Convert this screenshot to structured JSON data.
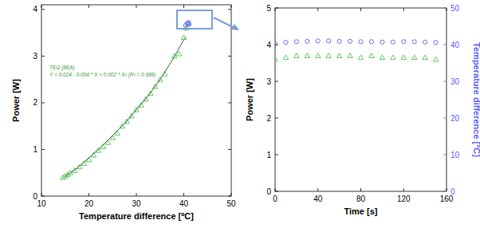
{
  "chart_data": [
    {
      "type": "scatter",
      "x_label": "Temperature difference [ºC]",
      "y_label": "Power [W]",
      "xlim": [
        10,
        50
      ],
      "xticks": [
        10,
        20,
        30,
        40,
        50
      ],
      "ylim": [
        0,
        4.1
      ],
      "yticks": [
        0,
        1,
        2,
        3,
        4
      ],
      "series": [
        {
          "name": "TEG (8EA)",
          "type": "scatter",
          "marker": "triangle",
          "color": "#4cc44c",
          "x": [
            14.5,
            15,
            15.5,
            16,
            17,
            18,
            19,
            20,
            21,
            22,
            23,
            24,
            25,
            26,
            27,
            28,
            29,
            30,
            31,
            32,
            33,
            34,
            35,
            36,
            38,
            39,
            40,
            40.5,
            41
          ],
          "values": [
            0.4,
            0.43,
            0.46,
            0.5,
            0.55,
            0.63,
            0.7,
            0.78,
            0.88,
            0.98,
            1.06,
            1.15,
            1.25,
            1.35,
            1.5,
            1.6,
            1.72,
            1.85,
            1.95,
            2.08,
            2.2,
            2.35,
            2.5,
            2.62,
            3.0,
            3.05,
            3.4,
            3.6,
            3.7
          ]
        },
        {
          "name": "Y = 0.024 - 0.004 * X + 0.002 * X² (R² = 0.999)",
          "type": "line",
          "line_style": "solid",
          "color": "#336633",
          "x": [
            15,
            17.5,
            20,
            22.5,
            25,
            27.5,
            30,
            32.5,
            35,
            37.5,
            40,
            40.5
          ],
          "values": [
            0.42,
            0.6,
            0.82,
            1.05,
            1.3,
            1.55,
            1.85,
            2.15,
            2.5,
            2.9,
            3.35,
            3.4
          ]
        },
        {
          "type": "scatter",
          "marker": "circle",
          "color": "#5a5aff",
          "x": [
            40.4,
            40.7,
            41,
            41.1
          ],
          "values": [
            3.66,
            3.7,
            3.72,
            3.68
          ]
        }
      ]
    },
    {
      "type": "scatter",
      "x_label": "Time [s]",
      "y_label": "Power [W]",
      "y2_label": "Temperature difference [ºC]",
      "xlim": [
        0,
        160
      ],
      "xticks": [
        0,
        40,
        80,
        120,
        160
      ],
      "ylim": [
        0,
        5
      ],
      "yticks": [
        0,
        1,
        2,
        3,
        4,
        5
      ],
      "y2lim": [
        0,
        50
      ],
      "y2ticks": [
        0,
        10,
        20,
        30,
        40,
        50
      ],
      "series": [
        {
          "type": "scatter",
          "marker": "triangle",
          "color": "#4cc44c",
          "axis": "y",
          "x": [
            0,
            10,
            20,
            30,
            40,
            50,
            60,
            70,
            80,
            90,
            100,
            110,
            120,
            130,
            140,
            150
          ],
          "values": [
            3.6,
            3.65,
            3.7,
            3.7,
            3.7,
            3.7,
            3.7,
            3.7,
            3.65,
            3.7,
            3.65,
            3.65,
            3.65,
            3.65,
            3.65,
            3.6
          ]
        },
        {
          "type": "scatter",
          "marker": "circle",
          "color": "#5a5aff",
          "axis": "y2",
          "x": [
            0,
            10,
            20,
            30,
            40,
            50,
            60,
            70,
            80,
            90,
            100,
            110,
            120,
            130,
            140,
            150
          ],
          "values": [
            40.2,
            40.6,
            40.8,
            40.9,
            41.0,
            41.0,
            40.9,
            40.9,
            40.8,
            40.8,
            40.7,
            40.7,
            40.8,
            40.8,
            40.7,
            40.6
          ]
        }
      ]
    }
  ]
}
